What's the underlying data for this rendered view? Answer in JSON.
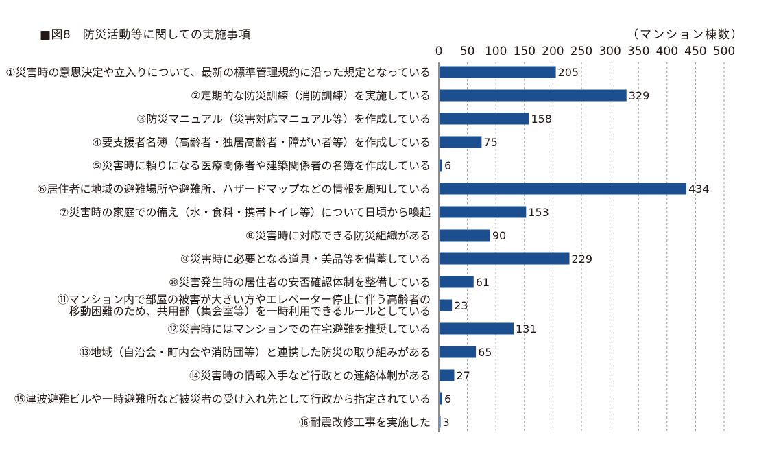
{
  "chart_data": {
    "type": "bar",
    "orientation": "horizontal",
    "title": "■図8　防災活動等に関しての実施事項",
    "unit": "（マンション棟数）",
    "xlim": [
      0,
      500
    ],
    "xticks": [
      0,
      50,
      100,
      150,
      200,
      250,
      300,
      350,
      400,
      450,
      500
    ],
    "grid": "vertical dashed",
    "bar_color": "#1b4f8f",
    "categories": [
      [
        "①災害時の意思決定や立入りについて、最新の標準管理規約に沿った規定となっている"
      ],
      [
        "②定期的な防災訓練（消防訓練）を実施している"
      ],
      [
        "③防災マニュアル（災害対応マニュアル等）を作成している"
      ],
      [
        "④要支援者名簿（高齢者・独居高齢者・障がい者等）を作成している"
      ],
      [
        "⑤災害時に頼りになる医療関係者や建築関係者の名簿を作成している"
      ],
      [
        "⑥居住者に地域の避難場所や避難所、ハザードマップなどの情報を周知している"
      ],
      [
        "⑦災害時の家庭での備え（水・食料・携帯トイレ等）について日頃から喚起"
      ],
      [
        "⑧災害時に対応できる防災組織がある"
      ],
      [
        "⑨災害時に必要となる道具・美品等を備蓄している"
      ],
      [
        "⑩災害発生時の居住者の安否確認体制を整備している"
      ],
      [
        "⑪マンション内で部屋の被害が大きい方やエレベーター停止に伴う高齢者の",
        "移動困難のため、共用部（集会室等）を一時利用できるルールとしている"
      ],
      [
        "⑫災害時にはマンションでの在宅避難を推奨している"
      ],
      [
        "⑬地域（自治会・町内会や消防団等）と連携した防災の取り組みがある"
      ],
      [
        "⑭災害時の情報入手など行政との連絡体制がある"
      ],
      [
        "⑮津波避難ビルや一時避難所など被災者の受け入れ先として行政から指定されている"
      ],
      [
        "⑯耐震改修工事を実施した"
      ]
    ],
    "values": [
      205,
      329,
      158,
      75,
      6,
      434,
      153,
      90,
      229,
      61,
      23,
      131,
      65,
      27,
      6,
      3
    ]
  }
}
